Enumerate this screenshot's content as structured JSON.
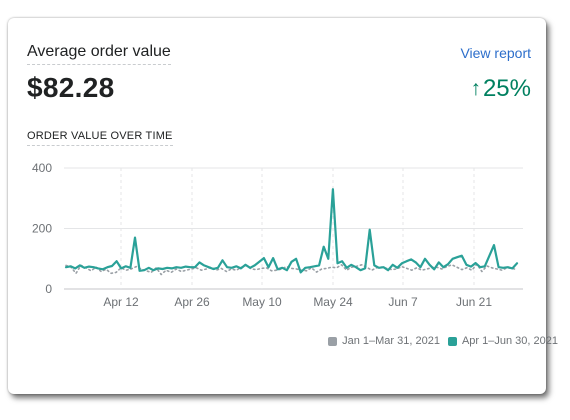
{
  "card": {
    "title": "Average order value",
    "view_report": "View report",
    "value": "$82.28",
    "change": "25%",
    "change_arrow": "↑",
    "section_label": "ORDER VALUE OVER TIME"
  },
  "colors": {
    "current": "#2aa198",
    "previous": "#9aa0a6",
    "positive": "#008060",
    "link": "#2c6ecb"
  },
  "chart_data": {
    "type": "line",
    "y_ticks": [
      "400",
      "200",
      "0"
    ],
    "ylim": [
      0,
      400
    ],
    "x_ticks": [
      "Apr 12",
      "Apr 26",
      "May 10",
      "May 24",
      "Jun 7",
      "Jun 21"
    ],
    "grid": true,
    "legend_position": "bottom-right",
    "series": [
      {
        "name": "Jan 1–Mar 31, 2021",
        "style": "dotted",
        "values": [
          78,
          72,
          52,
          78,
          70,
          60,
          72,
          58,
          65,
          52,
          55,
          70,
          62,
          66,
          74,
          66,
          60,
          55,
          70,
          48,
          62,
          55,
          66,
          58,
          62,
          66,
          70,
          62,
          66,
          72,
          62,
          68,
          58,
          66,
          62,
          72,
          78,
          66,
          64,
          68,
          70,
          60,
          62,
          66,
          74,
          68,
          66,
          62,
          60,
          70,
          56,
          66,
          68,
          72,
          70,
          80,
          62,
          72,
          75,
          80,
          72,
          62,
          70,
          72,
          68,
          64,
          66,
          74,
          68,
          62,
          70,
          62,
          66,
          70,
          72,
          66,
          74,
          80,
          72,
          64,
          70,
          62,
          82,
          58,
          76,
          70,
          66,
          62,
          70,
          68,
          64
        ]
      },
      {
        "name": "Apr 1–Jun 30, 2021",
        "style": "solid",
        "values": [
          72,
          75,
          68,
          78,
          70,
          74,
          72,
          68,
          65,
          72,
          76,
          92,
          68,
          75,
          70,
          170,
          60,
          62,
          70,
          62,
          68,
          66,
          70,
          68,
          72,
          70,
          74,
          72,
          72,
          88,
          78,
          72,
          66,
          70,
          95,
          72,
          70,
          75,
          68,
          80,
          70,
          78,
          90,
          102,
          72,
          102,
          65,
          70,
          62,
          90,
          100,
          55,
          70,
          72,
          75,
          78,
          140,
          100,
          330,
          85,
          92,
          70,
          80,
          72,
          62,
          68,
          196,
          78,
          70,
          72,
          62,
          80,
          70,
          85,
          92,
          98,
          88,
          72,
          100,
          80,
          65,
          88,
          72,
          82,
          100,
          105,
          110,
          80,
          74,
          86,
          72,
          75,
          110,
          145,
          72,
          70,
          72,
          68,
          85
        ]
      }
    ]
  }
}
